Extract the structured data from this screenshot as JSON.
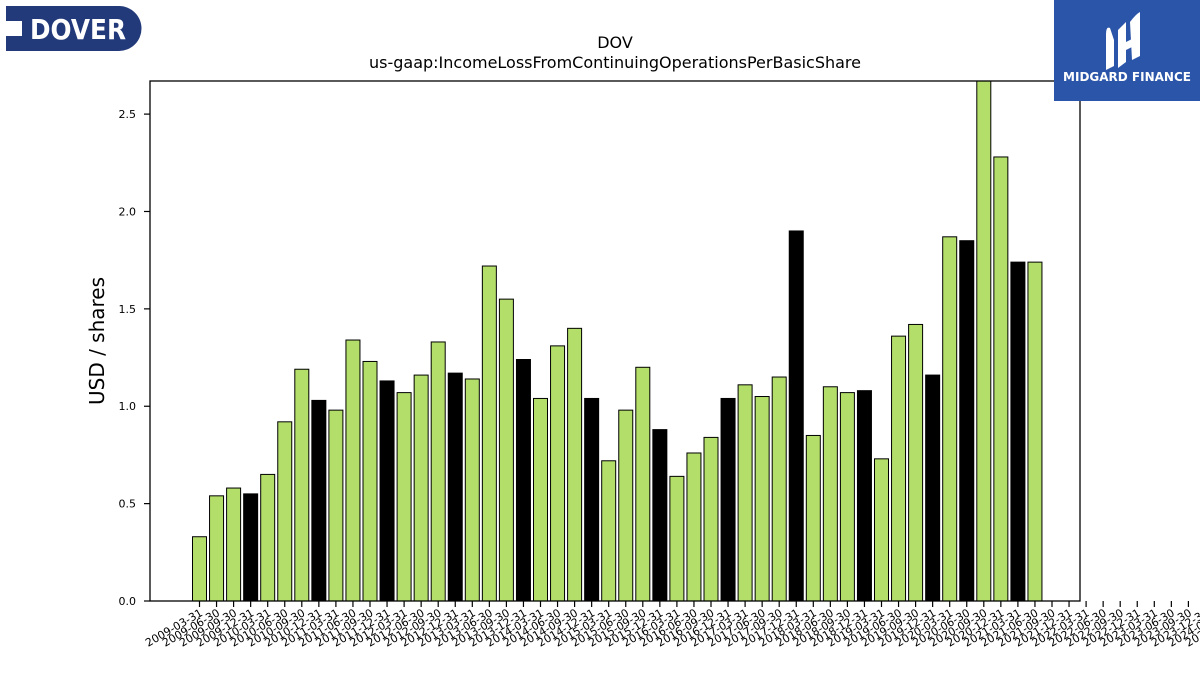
{
  "logos": {
    "left_text": "DOVER",
    "right_text": "MIDGARD FINANCE"
  },
  "colors": {
    "bar_default": "#b3de69",
    "bar_highlight": "#000000",
    "left_logo_bg": "#233a7a",
    "right_logo_bg": "#2b55a8"
  },
  "chart_data": {
    "type": "bar",
    "title": "DOV",
    "subtitle": "us-gaap:IncomeLossFromContinuingOperationsPerBasicShare",
    "xlabel": "",
    "ylabel": "USD / shares",
    "ylim": [
      0,
      2.67
    ],
    "yticks": [
      0.0,
      0.5,
      1.0,
      1.5,
      2.0,
      2.5
    ],
    "ytick_labels": [
      "0.0",
      "0.5",
      "1.0",
      "1.5",
      "2.0",
      "2.5"
    ],
    "grid": false,
    "categories": [
      "2009-03-31",
      "2009-06-30",
      "2009-09-30",
      "2009-12-31",
      "2010-03-31",
      "2010-06-30",
      "2010-09-30",
      "2010-12-31",
      "2011-03-31",
      "2011-06-30",
      "2011-09-30",
      "2011-12-31",
      "2012-03-31",
      "2012-06-30",
      "2012-09-30",
      "2012-12-31",
      "2013-03-31",
      "2013-06-30",
      "2013-09-30",
      "2013-12-31",
      "2014-03-31",
      "2014-06-30",
      "2014-09-30",
      "2014-12-31",
      "2015-03-31",
      "2015-06-30",
      "2015-09-30",
      "2015-12-31",
      "2016-03-31",
      "2016-06-30",
      "2016-09-30",
      "2016-12-31",
      "2017-03-31",
      "2017-06-30",
      "2017-09-30",
      "2017-12-31",
      "2018-03-31",
      "2018-06-30",
      "2018-09-30",
      "2018-12-31",
      "2019-03-31",
      "2019-06-30",
      "2019-09-30",
      "2019-12-31",
      "2020-03-31",
      "2020-06-30",
      "2020-09-30",
      "2020-12-31",
      "2021-03-31",
      "2021-06-30",
      "2021-09-30",
      "2021-12-31",
      "2022-03-31",
      "2022-06-30",
      "2022-09-30",
      "2022-12-31",
      "2023-03-31",
      "2023-06-30",
      "2023-09-30",
      "2023-12-31",
      "2024-03-31",
      "2024-06-30",
      "2024-09-30",
      "2024-12-31",
      "2025-03-31"
    ],
    "tick_labels": [
      "2009-03-31",
      "2009-06-30",
      "2009-09-30",
      "2009-12-31",
      "2010-03-31",
      "2010-06-30",
      "2010-09-30",
      "2010-12-31",
      "2011-03-31",
      "2011-06-30",
      "2011-09-30",
      "2011-12-31",
      "2012-03-31",
      "2012-06-30",
      "2012-09-30",
      "2012-12-31",
      "2013-03-31",
      "2013-06-30",
      "2013-09-30",
      "2013-12-31",
      "2014-03-31",
      "2014-06-30",
      "2014-09-30",
      "2014-12-31",
      "2015-03-31",
      "2015-06-30",
      "2015-09-30",
      "2015-12-31",
      "2016-03-31",
      "2016-06-30",
      "2016-09-30",
      "2016-12-31",
      "2017-03-31",
      "2017-06-30",
      "2017-09-30",
      "2017-12-31",
      "2018-03-31",
      "2018-06-30",
      "2018-09-30",
      "2018-12-31",
      "2019-03-31",
      "2019-06-30",
      "2019-09-30",
      "2019-12-31",
      "2020-03-31",
      "2020-06-30",
      "2020-09-30",
      "2020-12-31",
      "2021-03-31",
      "2021-06-30",
      "2021-09-30",
      "2021-12-31",
      "2022-03-31",
      "2022-06-30",
      "2022-09-30",
      "2022-12-31",
      "2023-03-31",
      "2023-06-30",
      "2023-09-30",
      "2023-12-31",
      "2024-03-31",
      "2024-06-30",
      "2024-09-30",
      "2024-12-31",
      "2025-03-31"
    ],
    "bars": [
      {
        "x": "2009-03-31",
        "value": 0.33,
        "highlight": false
      },
      {
        "x": "2009-06-30",
        "value": 0.54,
        "highlight": false
      },
      {
        "x": "2009-09-30",
        "value": 0.58,
        "highlight": false
      },
      {
        "x": "2009-12-31",
        "value": 0.55,
        "highlight": true
      },
      {
        "x": "2010-03-31",
        "value": 0.65,
        "highlight": false
      },
      {
        "x": "2010-06-30",
        "value": 0.92,
        "highlight": false
      },
      {
        "x": "2010-09-30",
        "value": 1.19,
        "highlight": false
      },
      {
        "x": "2010-12-31",
        "value": 1.03,
        "highlight": true
      },
      {
        "x": "2011-03-31",
        "value": 0.98,
        "highlight": false
      },
      {
        "x": "2011-06-30",
        "value": 1.34,
        "highlight": false
      },
      {
        "x": "2011-09-30",
        "value": 1.23,
        "highlight": false
      },
      {
        "x": "2011-12-31",
        "value": 1.13,
        "highlight": true
      },
      {
        "x": "2012-03-31",
        "value": 1.07,
        "highlight": false
      },
      {
        "x": "2012-06-30",
        "value": 1.16,
        "highlight": false
      },
      {
        "x": "2012-09-30",
        "value": 1.33,
        "highlight": false
      },
      {
        "x": "2012-12-31",
        "value": 1.17,
        "highlight": true
      },
      {
        "x": "2013-03-31",
        "value": 1.14,
        "highlight": false
      },
      {
        "x": "2013-06-30",
        "value": 1.72,
        "highlight": false
      },
      {
        "x": "2013-09-30",
        "value": 1.55,
        "highlight": false
      },
      {
        "x": "2013-12-31",
        "value": 1.24,
        "highlight": true
      },
      {
        "x": "2014-03-31",
        "value": 1.04,
        "highlight": false
      },
      {
        "x": "2014-06-30",
        "value": 1.31,
        "highlight": false
      },
      {
        "x": "2014-09-30",
        "value": 1.4,
        "highlight": false
      },
      {
        "x": "2014-12-31",
        "value": 1.04,
        "highlight": true
      },
      {
        "x": "2015-03-31",
        "value": 0.72,
        "highlight": false
      },
      {
        "x": "2015-06-30",
        "value": 0.98,
        "highlight": false
      },
      {
        "x": "2015-09-30",
        "value": 1.2,
        "highlight": false
      },
      {
        "x": "2015-12-31",
        "value": 0.88,
        "highlight": true
      },
      {
        "x": "2016-03-31",
        "value": 0.64,
        "highlight": false
      },
      {
        "x": "2016-06-30",
        "value": 0.76,
        "highlight": false
      },
      {
        "x": "2016-09-30",
        "value": 0.84,
        "highlight": false
      },
      {
        "x": "2016-12-31",
        "value": 1.04,
        "highlight": true
      },
      {
        "x": "2017-03-31",
        "value": 1.11,
        "highlight": false
      },
      {
        "x": "2017-06-30",
        "value": 1.05,
        "highlight": false
      },
      {
        "x": "2017-09-30",
        "value": 1.15,
        "highlight": false
      },
      {
        "x": "2017-12-31",
        "value": 1.9,
        "highlight": true
      },
      {
        "x": "2018-03-31",
        "value": 0.85,
        "highlight": false
      },
      {
        "x": "2018-06-30",
        "value": 1.1,
        "highlight": false
      },
      {
        "x": "2018-09-30",
        "value": 1.07,
        "highlight": false
      },
      {
        "x": "2018-12-31",
        "value": 1.08,
        "highlight": true
      },
      {
        "x": "2019-03-31",
        "value": 0.73,
        "highlight": false
      },
      {
        "x": "2019-06-30",
        "value": 1.36,
        "highlight": false
      },
      {
        "x": "2019-09-30",
        "value": 1.42,
        "highlight": false
      },
      {
        "x": "2019-12-31",
        "value": 1.16,
        "highlight": true
      },
      {
        "x": "2020-03-31",
        "value": 1.87,
        "highlight": false
      },
      {
        "x": "2020-06-30",
        "value": 1.85,
        "highlight": true
      },
      {
        "x": "2020-09-30",
        "value": 2.67,
        "highlight": false
      },
      {
        "x": "2020-12-31",
        "value": 2.28,
        "highlight": false
      },
      {
        "x": "2021-03-31",
        "value": 1.74,
        "highlight": true
      },
      {
        "x": "2021-06-30",
        "value": 1.74,
        "highlight": false
      }
    ]
  }
}
